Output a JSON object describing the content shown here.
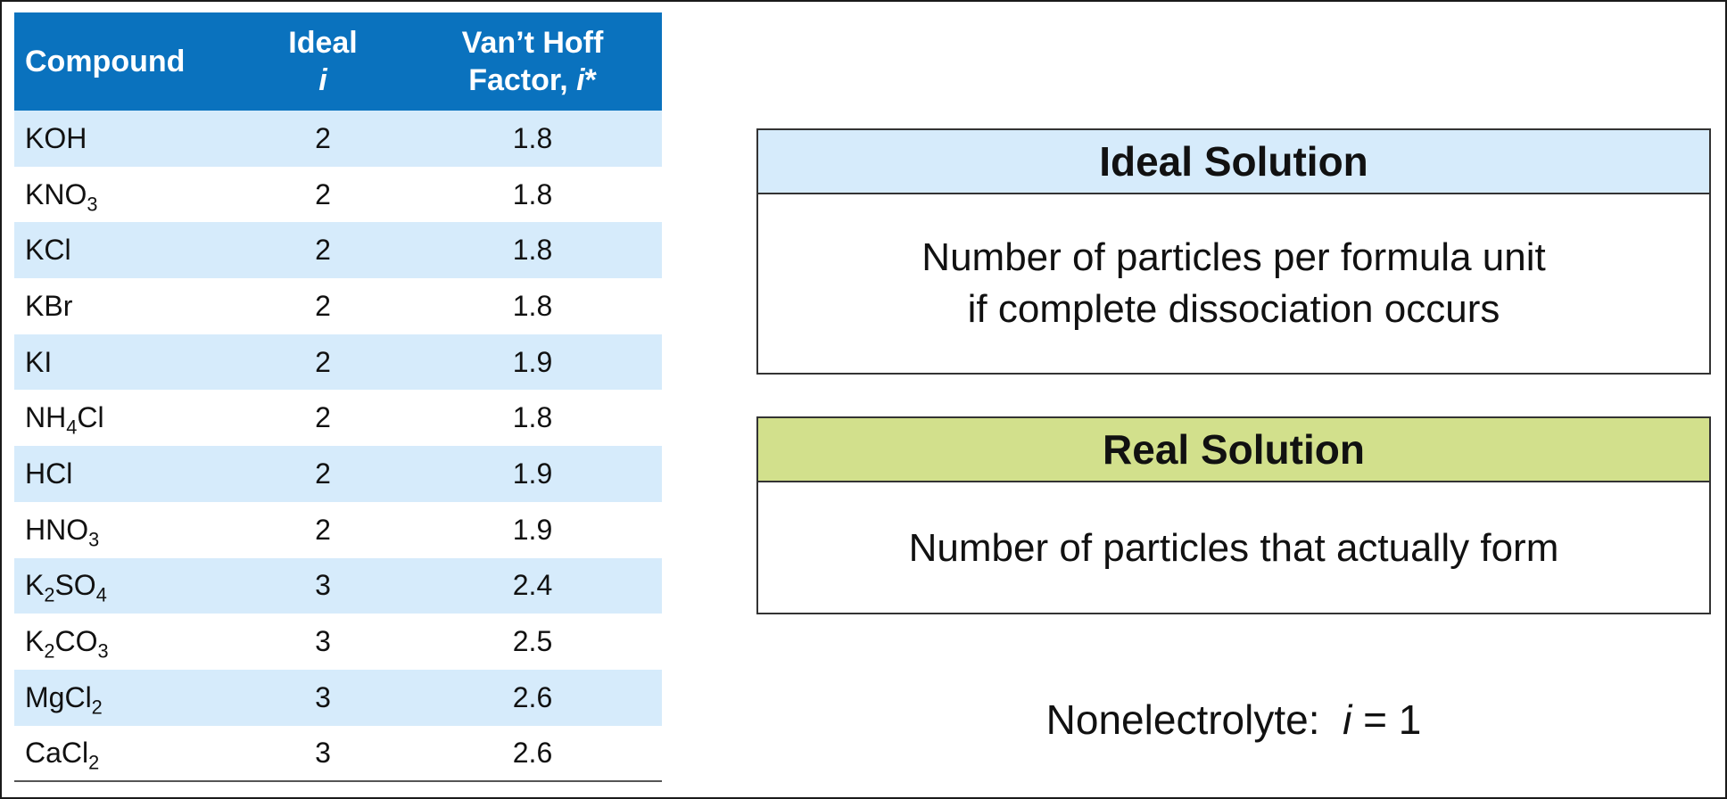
{
  "table": {
    "headers": {
      "compound": "Compound",
      "ideal_line1": "Ideal",
      "ideal_line2": "i",
      "vh_line1": "Van’t Hoff",
      "vh_line2_prefix": "Factor, ",
      "vh_line2_var": "i",
      "vh_line2_suffix": "*"
    },
    "rows": [
      {
        "formula": [
          {
            "t": "KOH"
          }
        ],
        "ideal": "2",
        "vh": "1.8"
      },
      {
        "formula": [
          {
            "t": "KNO"
          },
          {
            "s": "3"
          }
        ],
        "ideal": "2",
        "vh": "1.8"
      },
      {
        "formula": [
          {
            "t": "KCl"
          }
        ],
        "ideal": "2",
        "vh": "1.8"
      },
      {
        "formula": [
          {
            "t": "KBr"
          }
        ],
        "ideal": "2",
        "vh": "1.8"
      },
      {
        "formula": [
          {
            "t": "KI"
          }
        ],
        "ideal": "2",
        "vh": "1.9"
      },
      {
        "formula": [
          {
            "t": "NH"
          },
          {
            "s": "4"
          },
          {
            "t": "Cl"
          }
        ],
        "ideal": "2",
        "vh": "1.8"
      },
      {
        "formula": [
          {
            "t": "HCl"
          }
        ],
        "ideal": "2",
        "vh": "1.9"
      },
      {
        "formula": [
          {
            "t": "HNO"
          },
          {
            "s": "3"
          }
        ],
        "ideal": "2",
        "vh": "1.9"
      },
      {
        "formula": [
          {
            "t": "K"
          },
          {
            "s": "2"
          },
          {
            "t": "SO"
          },
          {
            "s": "4"
          }
        ],
        "ideal": "3",
        "vh": "2.4"
      },
      {
        "formula": [
          {
            "t": "K"
          },
          {
            "s": "2"
          },
          {
            "t": "CO"
          },
          {
            "s": "3"
          }
        ],
        "ideal": "3",
        "vh": "2.5"
      },
      {
        "formula": [
          {
            "t": "MgCl"
          },
          {
            "s": "2"
          }
        ],
        "ideal": "3",
        "vh": "2.6"
      },
      {
        "formula": [
          {
            "t": "CaCl"
          },
          {
            "s": "2"
          }
        ],
        "ideal": "3",
        "vh": "2.6"
      }
    ]
  },
  "ideal_box": {
    "title": "Ideal Solution",
    "line1": "Number of particles per formula unit",
    "line2": "if complete dissociation occurs"
  },
  "real_box": {
    "title": "Real Solution",
    "text": "Number of particles that actually form"
  },
  "nonelectrolyte": {
    "prefix": "Nonelectrolyte:  ",
    "var": "i",
    "suffix": " = 1"
  },
  "colors": {
    "table_header": "#0a72be",
    "row_band": "#d6ebfb",
    "ideal_header": "#d6ebfb",
    "real_header": "#d2e08c"
  }
}
